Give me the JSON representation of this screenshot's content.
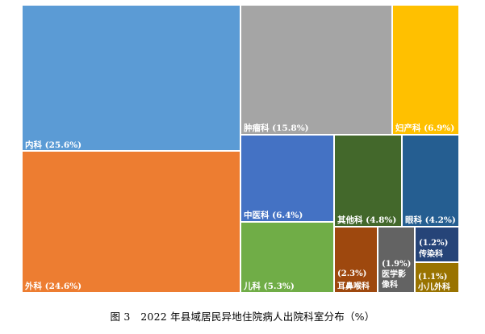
{
  "chart_data": {
    "type": "treemap",
    "unit": "%",
    "items": [
      {
        "name": "内科",
        "value": 25.6,
        "label": "内科 (25.6%)",
        "color": "#5B9BD5"
      },
      {
        "name": "外科",
        "value": 24.6,
        "label": "外科 (24.6%)",
        "color": "#ED7D31"
      },
      {
        "name": "肿瘤科",
        "value": 15.8,
        "label": "肿瘤科 (15.8%)",
        "color": "#A5A5A5"
      },
      {
        "name": "妇产科",
        "value": 6.9,
        "label": "妇产科 (6.9%)",
        "color": "#FFC000"
      },
      {
        "name": "中医科",
        "value": 6.4,
        "label": "中医科 (6.4%)",
        "color": "#4472C4"
      },
      {
        "name": "儿科",
        "value": 5.3,
        "label": "儿科 (5.3%)",
        "color": "#70AD47"
      },
      {
        "name": "其他科",
        "value": 4.8,
        "label": "其他科 (4.8%)",
        "color": "#43682B"
      },
      {
        "name": "眼科",
        "value": 4.2,
        "label": "眼科 (4.2%)",
        "color": "#255E91"
      },
      {
        "name": "耳鼻喉科",
        "value": 2.3,
        "label_lines": [
          "(2.3%)",
          "耳鼻喉科"
        ],
        "color": "#9E480E"
      },
      {
        "name": "医学影像科",
        "value": 1.9,
        "label_lines": [
          "(1.9%)",
          "医学影",
          "像科"
        ],
        "color": "#636363"
      },
      {
        "name": "传染科",
        "value": 1.2,
        "label_lines": [
          "(1.2%)",
          "传染科"
        ],
        "color": "#264478"
      },
      {
        "name": "小儿外科",
        "value": 1.1,
        "label_lines": [
          "(1.1%)",
          "小儿外科"
        ],
        "color": "#997300"
      }
    ]
  },
  "caption": "图 3　2022 年县域居民异地住院病人出院科室分布（%）"
}
